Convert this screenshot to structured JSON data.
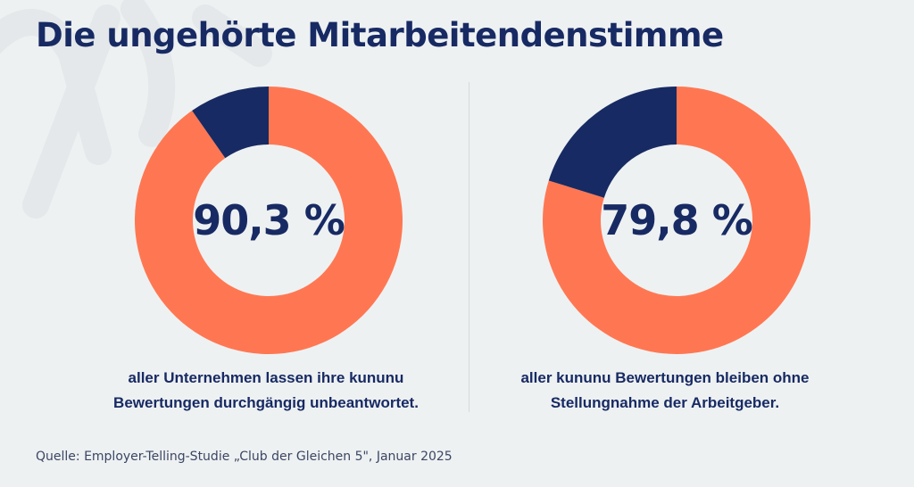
{
  "title": "Die ungehörte Mitarbeitendenstimme",
  "colors": {
    "background": "#eef1f2",
    "navy": "#172a63",
    "orange": "#ff7752",
    "divider": "#d6dadd"
  },
  "chart_data": [
    {
      "type": "pie",
      "style": "donut",
      "value_label": "90,3 %",
      "values": [
        90.3,
        9.7
      ],
      "colors": [
        "#ff7752",
        "#172a63"
      ],
      "caption": [
        "aller Unternehmen lassen ihre kununu",
        "Bewertungen durchgängig unbeantwortet."
      ]
    },
    {
      "type": "pie",
      "style": "donut",
      "value_label": "79,8 %",
      "values": [
        79.8,
        20.2
      ],
      "colors": [
        "#ff7752",
        "#172a63"
      ],
      "caption": [
        "aller kununu Bewertungen bleiben ohne",
        "Stellungnahme der Arbeitgeber."
      ]
    }
  ],
  "source": "Quelle: Employer-Telling-Studie „Club der Gleichen 5\", Januar 2025"
}
